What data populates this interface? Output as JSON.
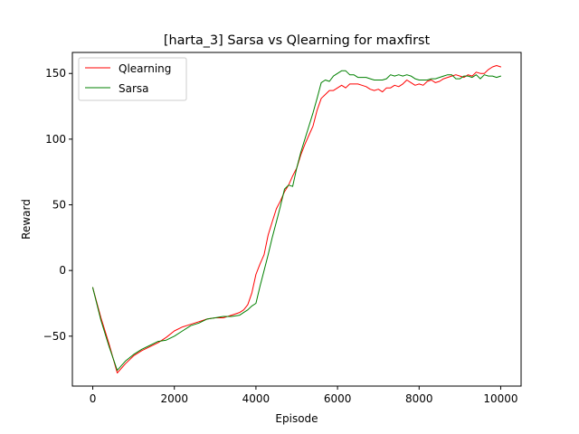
{
  "chart_data": {
    "type": "line",
    "title": "[harta_3] Sarsa vs Qlearning for maxfirst",
    "xlabel": "Episode",
    "ylabel": "Reward",
    "xlim": [
      -500,
      10500
    ],
    "ylim": [
      -88,
      166
    ],
    "xticks": [
      0,
      2000,
      4000,
      6000,
      8000,
      10000
    ],
    "xtick_labels": [
      "0",
      "2000",
      "4000",
      "6000",
      "8000",
      "10000"
    ],
    "yticks": [
      -50,
      0,
      50,
      100,
      150
    ],
    "ytick_labels": [
      "−50",
      "0",
      "50",
      "100",
      "150"
    ],
    "grid": false,
    "legend_position": "top-left",
    "series": [
      {
        "name": "Qlearning",
        "color": "#ff0000",
        "x": [
          0,
          200,
          400,
          600,
          800,
          1000,
          1200,
          1400,
          1600,
          1800,
          2000,
          2200,
          2400,
          2600,
          2800,
          3000,
          3200,
          3400,
          3600,
          3700,
          3800,
          3900,
          4000,
          4100,
          4200,
          4300,
          4400,
          4500,
          4600,
          4700,
          4800,
          4900,
          5000,
          5100,
          5200,
          5300,
          5400,
          5500,
          5600,
          5700,
          5800,
          5900,
          6000,
          6100,
          6200,
          6300,
          6400,
          6500,
          6600,
          6700,
          6800,
          6900,
          7000,
          7100,
          7200,
          7300,
          7400,
          7500,
          7600,
          7700,
          7800,
          7900,
          8000,
          8100,
          8200,
          8300,
          8400,
          8500,
          8600,
          8700,
          8800,
          8900,
          9000,
          9100,
          9200,
          9300,
          9400,
          9500,
          9600,
          9700,
          9800,
          9900,
          10000
        ],
        "y": [
          -13,
          -36,
          -56,
          -78,
          -71,
          -65,
          -61,
          -58,
          -55,
          -51,
          -46,
          -43,
          -41,
          -39,
          -37,
          -36,
          -36,
          -34,
          -32,
          -30,
          -26,
          -17,
          -3,
          5,
          12,
          27,
          37,
          47,
          53,
          60,
          65,
          72,
          78,
          88,
          96,
          103,
          110,
          122,
          131,
          134,
          137,
          137,
          139,
          141,
          139,
          142,
          142,
          142,
          141,
          140,
          138,
          137,
          138,
          136,
          139,
          139,
          141,
          140,
          142,
          145,
          143,
          141,
          142,
          141,
          144,
          145,
          143,
          144,
          146,
          147,
          148,
          149,
          148,
          147,
          149,
          148,
          151,
          150,
          150,
          153,
          155,
          156,
          155
        ],
        "width": 1
      },
      {
        "name": "Sarsa",
        "color": "#008000",
        "x": [
          0,
          200,
          400,
          600,
          800,
          1000,
          1200,
          1400,
          1600,
          1800,
          2000,
          2200,
          2400,
          2600,
          2800,
          3000,
          3200,
          3400,
          3600,
          3700,
          3800,
          3900,
          4000,
          4100,
          4200,
          4300,
          4400,
          4500,
          4600,
          4700,
          4800,
          4900,
          5000,
          5100,
          5200,
          5300,
          5400,
          5500,
          5600,
          5700,
          5800,
          5900,
          6000,
          6100,
          6200,
          6300,
          6400,
          6500,
          6600,
          6700,
          6800,
          6900,
          7000,
          7100,
          7200,
          7300,
          7400,
          7500,
          7600,
          7700,
          7800,
          7900,
          8000,
          8100,
          8200,
          8300,
          8400,
          8500,
          8600,
          8700,
          8800,
          8900,
          9000,
          9100,
          9200,
          9300,
          9400,
          9500,
          9600,
          9700,
          9800,
          9900,
          10000
        ],
        "y": [
          -13,
          -38,
          -58,
          -76,
          -69,
          -64,
          -60,
          -57,
          -54,
          -53,
          -50,
          -46,
          -42,
          -40,
          -37,
          -36,
          -35,
          -35,
          -34,
          -32,
          -30,
          -27,
          -25,
          -12,
          0,
          12,
          25,
          37,
          49,
          62,
          65,
          64,
          78,
          90,
          100,
          110,
          120,
          131,
          143,
          145,
          144,
          148,
          150,
          152,
          152,
          149,
          149,
          147,
          147,
          147,
          146,
          145,
          145,
          145,
          146,
          149,
          148,
          149,
          148,
          149,
          148,
          146,
          145,
          145,
          145,
          146,
          146,
          147,
          148,
          149,
          149,
          146,
          146,
          148,
          148,
          147,
          149,
          146,
          149,
          148,
          148,
          147,
          148
        ],
        "width": 1
      }
    ]
  }
}
